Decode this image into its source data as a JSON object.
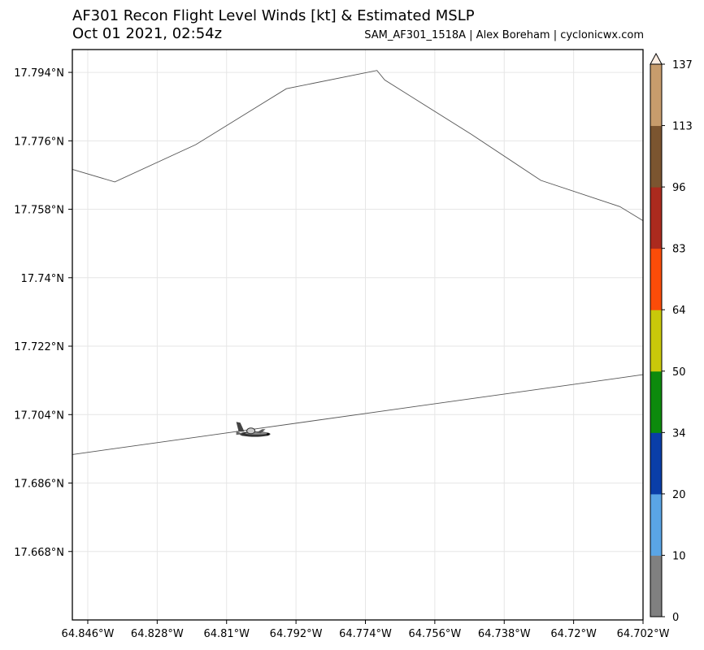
{
  "title": "AF301 Recon Flight Level Winds [kt] & Estimated MSLP",
  "subtitle": "Oct 01 2021, 02:54z",
  "credit": "SAM_AF301_1518A | Alex Boreham | cyclonicwx.com",
  "map": {
    "lat_range": [
      17.65,
      17.8
    ],
    "lon_range": [
      -64.85,
      -64.702
    ],
    "lat_ticks": [
      {
        "value": 17.794,
        "label": "17.794°N"
      },
      {
        "value": 17.776,
        "label": "17.776°N"
      },
      {
        "value": 17.758,
        "label": "17.758°N"
      },
      {
        "value": 17.74,
        "label": "17.74°N"
      },
      {
        "value": 17.722,
        "label": "17.722°N"
      },
      {
        "value": 17.704,
        "label": "17.704°N"
      },
      {
        "value": 17.686,
        "label": "17.686°N"
      },
      {
        "value": 17.668,
        "label": "17.668°N"
      }
    ],
    "lon_ticks": [
      {
        "value": -64.846,
        "label": "64.846°W"
      },
      {
        "value": -64.828,
        "label": "64.828°W"
      },
      {
        "value": -64.81,
        "label": "64.81°W"
      },
      {
        "value": -64.792,
        "label": "64.792°W"
      },
      {
        "value": -64.774,
        "label": "64.774°W"
      },
      {
        "value": -64.756,
        "label": "64.756°W"
      },
      {
        "value": -64.738,
        "label": "64.738°W"
      },
      {
        "value": -64.72,
        "label": "64.72°W"
      },
      {
        "value": -64.702,
        "label": "64.702°W"
      }
    ],
    "coastline": [
      [
        -64.85,
        17.7685
      ],
      [
        -64.839,
        17.7652
      ],
      [
        -64.818,
        17.775
      ],
      [
        -64.7945,
        17.7897
      ],
      [
        -64.771,
        17.7945
      ],
      [
        -64.769,
        17.792
      ],
      [
        -64.7465,
        17.7777
      ],
      [
        -64.7285,
        17.7656
      ],
      [
        -64.708,
        17.7587
      ],
      [
        -64.702,
        17.755
      ]
    ],
    "flight_track": [
      [
        -64.85,
        17.6935
      ],
      [
        -64.702,
        17.7145
      ]
    ],
    "aircraft": {
      "lon": -64.8035,
      "lat": 17.6995,
      "icon": "airplane-icon"
    }
  },
  "colorbar": {
    "ticks": [
      "0",
      "10",
      "20",
      "34",
      "50",
      "64",
      "83",
      "96",
      "113",
      "137"
    ],
    "colors": [
      "#808080",
      "#5aa5e6",
      "#0a3ea8",
      "#0c8a0c",
      "#c9c80a",
      "#fb4c09",
      "#ab2a1e",
      "#7b5530",
      "#c79c6c"
    ]
  }
}
